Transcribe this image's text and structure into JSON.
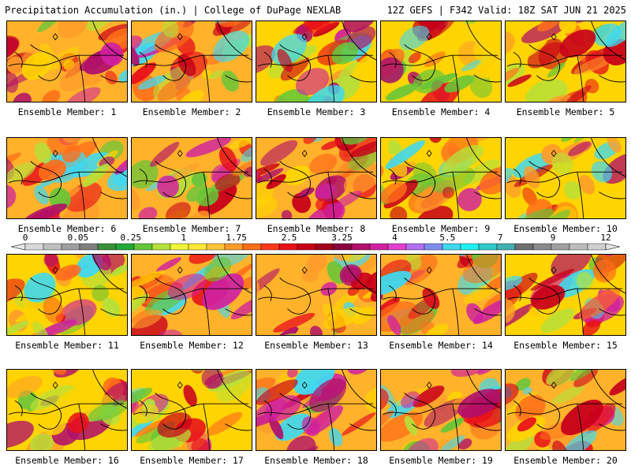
{
  "header": {
    "title": "Precipitation Accumulation (in.) | College of DuPage NEXLAB",
    "run_info": "12Z GEFS | F342 Valid: 18Z SAT JUN 21 2025"
  },
  "legend": {
    "tick_labels": [
      "0",
      "0.05",
      "0.25",
      "1",
      "1.75",
      "2.5",
      "3.25",
      "4",
      "5.5",
      "7",
      "9",
      "12"
    ],
    "colors": [
      "#d9d9d9",
      "#bfbfbf",
      "#9e9e9e",
      "#7f7f7f",
      "#3a8f3a",
      "#22a83a",
      "#66c63a",
      "#b5e03a",
      "#f0f53a",
      "#ffe83a",
      "#ffc43a",
      "#ff9c2a",
      "#ff6e1a",
      "#ff3a1a",
      "#e8101a",
      "#c8001a",
      "#a0001a",
      "#8a0040",
      "#b0106a",
      "#d020a0",
      "#e040d0",
      "#b070f0",
      "#7f8cf0",
      "#40d8f0",
      "#20f0f0",
      "#30c8c8",
      "#40b0b0",
      "#6e6e6e",
      "#8a8a8a",
      "#a0a0a0",
      "#bcbcbc",
      "#cfcfcf"
    ]
  },
  "members": [
    {
      "label": "Ensemble Member: 1"
    },
    {
      "label": "Ensemble Member: 2"
    },
    {
      "label": "Ensemble Member: 3"
    },
    {
      "label": "Ensemble Member: 4"
    },
    {
      "label": "Ensemble Member: 5"
    },
    {
      "label": "Ensemble Member: 6"
    },
    {
      "label": "Ensemble Member: 7"
    },
    {
      "label": "Ensemble Member: 8"
    },
    {
      "label": "Ensemble Member: 9"
    },
    {
      "label": "Ensemble Member: 10"
    },
    {
      "label": "Ensemble Member: 11"
    },
    {
      "label": "Ensemble Member: 12"
    },
    {
      "label": "Ensemble Member: 13"
    },
    {
      "label": "Ensemble Member: 14"
    },
    {
      "label": "Ensemble Member: 15"
    },
    {
      "label": "Ensemble Member: 16"
    },
    {
      "label": "Ensemble Member: 17"
    },
    {
      "label": "Ensemble Member: 18"
    },
    {
      "label": "Ensemble Member: 19"
    },
    {
      "label": "Ensemble Member: 20"
    }
  ]
}
